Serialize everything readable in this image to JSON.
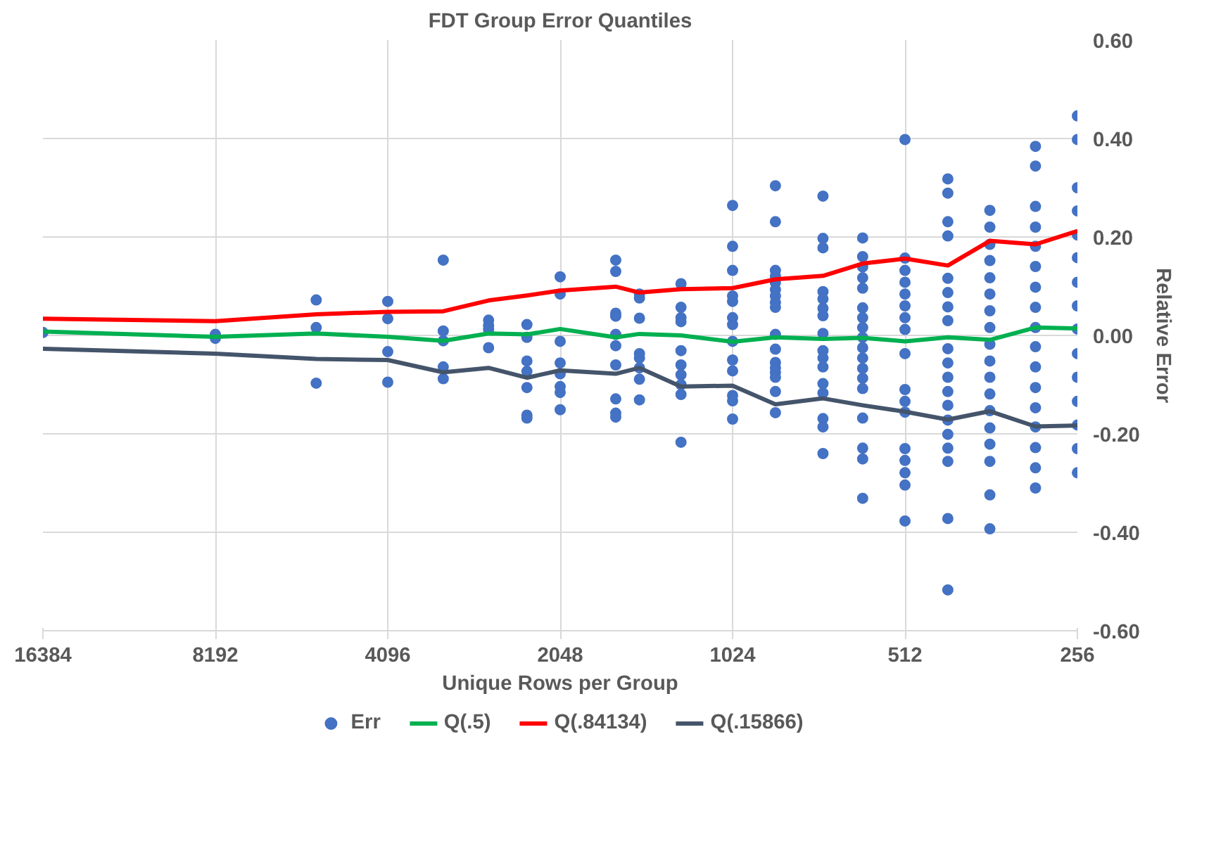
{
  "chart_data": {
    "type": "scatter",
    "title": "FDT Group Error Quantiles",
    "xlabel": "Unique Rows per Group",
    "ylabel": "Relative Error",
    "log": "x",
    "grid": true,
    "legend": "bottom",
    "xlim": [
      16384,
      256
    ],
    "xticks": [
      16384,
      8192,
      4096,
      2048,
      1024,
      512,
      256
    ],
    "ylim": [
      -0.6,
      0.6
    ],
    "yticks": [
      {
        "value": -0.6,
        "label": "-0.60"
      },
      {
        "value": -0.4,
        "label": "-0.40"
      },
      {
        "value": -0.2,
        "label": "-0.20"
      },
      {
        "value": 0,
        "label": "0.00"
      },
      {
        "value": 0.2,
        "label": "0.20"
      },
      {
        "value": 0.4,
        "label": "0.40"
      },
      {
        "value": 0.6,
        "label": "0.60"
      }
    ],
    "x": [
      16384,
      8192,
      5461,
      4096,
      3277,
      2731,
      2341,
      2048,
      1638,
      1489,
      1260,
      1024,
      862,
      712,
      607,
      512,
      431,
      364,
      303,
      256
    ],
    "series": [
      {
        "name": "Err",
        "marker": "circle",
        "color": "#4472c4",
        "x": [
          16384,
          8192,
          8192,
          5461,
          5461,
          5461,
          4096,
          4096,
          4096,
          4096,
          3277,
          3277,
          3277,
          3277,
          3277,
          2731,
          2731,
          2731,
          2731,
          2341,
          2341,
          2341,
          2341,
          2341,
          2341,
          2341,
          2048,
          2048,
          2048,
          2048,
          2048,
          2048,
          2048,
          2048,
          1638,
          1638,
          1638,
          1638,
          1638,
          1638,
          1638,
          1638,
          1638,
          1638,
          1489,
          1489,
          1489,
          1489,
          1489,
          1489,
          1489,
          1489,
          1260,
          1260,
          1260,
          1260,
          1260,
          1260,
          1260,
          1260,
          1260,
          1260,
          1024,
          1024,
          1024,
          1024,
          1024,
          1024,
          1024,
          1024,
          1024,
          1024,
          1024,
          1024,
          1024,
          862,
          862,
          862,
          862,
          862,
          862,
          862,
          862,
          862,
          862,
          862,
          862,
          862,
          862,
          862,
          862,
          862,
          712,
          712,
          712,
          712,
          712,
          712,
          712,
          712,
          712,
          712,
          712,
          712,
          712,
          712,
          712,
          712,
          607,
          607,
          607,
          607,
          607,
          607,
          607,
          607,
          607,
          607,
          607,
          607,
          607,
          607,
          607,
          607,
          607,
          607,
          512,
          512,
          512,
          512,
          512,
          512,
          512,
          512,
          512,
          512,
          512,
          512,
          512,
          512,
          512,
          512,
          512,
          431,
          431,
          431,
          431,
          431,
          431,
          431,
          431,
          431,
          431,
          431,
          431,
          431,
          431,
          431,
          431,
          431,
          431,
          431,
          364,
          364,
          364,
          364,
          364,
          364,
          364,
          364,
          364,
          364,
          364,
          364,
          364,
          364,
          364,
          364,
          364,
          364,
          303,
          303,
          303,
          303,
          303,
          303,
          303,
          303,
          303,
          303,
          303,
          303,
          303,
          303,
          303,
          303,
          303,
          256,
          256,
          256,
          256,
          256,
          256,
          256,
          256,
          256,
          256,
          256,
          256,
          256,
          256,
          256
        ],
        "values": [
          0.006,
          0.002,
          -0.006,
          0.072,
          0.016,
          -0.097,
          0.069,
          0.034,
          -0.033,
          -0.095,
          0.153,
          0.009,
          -0.011,
          -0.064,
          -0.088,
          0.031,
          0.02,
          0.012,
          -0.025,
          0.022,
          -0.004,
          -0.052,
          -0.073,
          -0.106,
          -0.162,
          -0.168,
          0.119,
          0.084,
          -0.012,
          -0.056,
          -0.078,
          -0.104,
          -0.116,
          -0.151,
          0.153,
          0.13,
          0.045,
          0.039,
          0.002,
          -0.021,
          -0.06,
          -0.129,
          -0.158,
          -0.166,
          0.084,
          0.076,
          0.035,
          -0.037,
          -0.046,
          -0.066,
          -0.089,
          -0.131,
          0.105,
          0.057,
          0.036,
          0.028,
          -0.031,
          -0.06,
          -0.08,
          -0.1,
          -0.12,
          -0.217,
          0.264,
          0.181,
          0.132,
          0.08,
          0.069,
          0.036,
          0.022,
          -0.012,
          -0.05,
          -0.072,
          -0.122,
          -0.133,
          -0.17,
          0.304,
          0.231,
          0.132,
          0.12,
          0.107,
          0.093,
          0.08,
          0.067,
          0.057,
          0.002,
          -0.028,
          -0.055,
          -0.066,
          -0.075,
          -0.085,
          -0.114,
          -0.157,
          0.283,
          0.197,
          0.178,
          0.089,
          0.074,
          0.055,
          0.04,
          0.004,
          -0.031,
          -0.046,
          -0.064,
          -0.098,
          -0.117,
          -0.169,
          -0.186,
          -0.24,
          0.198,
          0.16,
          0.139,
          0.117,
          0.096,
          0.056,
          0.036,
          0.016,
          -0.004,
          -0.025,
          -0.046,
          -0.067,
          -0.087,
          -0.108,
          -0.168,
          -0.229,
          -0.251,
          -0.331,
          0.398,
          0.157,
          0.132,
          0.108,
          0.084,
          0.06,
          0.036,
          0.012,
          -0.037,
          -0.11,
          -0.134,
          -0.156,
          -0.23,
          -0.254,
          -0.279,
          -0.304,
          -0.377,
          0.318,
          0.289,
          0.231,
          0.202,
          0.116,
          0.087,
          0.058,
          0.03,
          -0.027,
          -0.056,
          -0.085,
          -0.114,
          -0.142,
          -0.172,
          -0.201,
          -0.229,
          -0.256,
          -0.372,
          -0.517,
          0.254,
          0.22,
          0.185,
          0.152,
          0.117,
          0.084,
          0.05,
          0.016,
          -0.018,
          -0.052,
          -0.085,
          -0.119,
          -0.153,
          -0.188,
          -0.221,
          -0.256,
          -0.324,
          -0.393,
          0.384,
          0.344,
          0.262,
          0.22,
          0.181,
          0.14,
          0.098,
          0.057,
          0.016,
          -0.023,
          -0.064,
          -0.106,
          -0.147,
          -0.186,
          -0.228,
          -0.269,
          -0.31,
          0.446,
          0.398,
          0.3,
          0.253,
          0.204,
          0.158,
          0.108,
          0.06,
          0.013,
          -0.037,
          -0.085,
          -0.134,
          -0.182,
          -0.23,
          -0.279
        ]
      },
      {
        "name": "Q(.5)",
        "type": "line",
        "marker": "none",
        "line_style": "solid",
        "color": "#00b050",
        "values": [
          0.008,
          -0.003,
          0.004,
          -0.003,
          -0.011,
          0.004,
          0.002,
          0.013,
          -0.004,
          0.003,
          0.0,
          -0.013,
          -0.004,
          -0.007,
          -0.005,
          -0.012,
          -0.004,
          -0.009,
          0.016,
          0.014
        ]
      },
      {
        "name": "Q(.84134)",
        "type": "line",
        "marker": "none",
        "line_style": "solid",
        "color": "#ff0000",
        "values": [
          0.034,
          0.029,
          0.043,
          0.048,
          0.049,
          0.071,
          0.081,
          0.091,
          0.099,
          0.087,
          0.094,
          0.096,
          0.114,
          0.121,
          0.146,
          0.156,
          0.142,
          0.192,
          0.185,
          0.212
        ]
      },
      {
        "name": "Q(.15866)",
        "type": "line",
        "marker": "none",
        "line_style": "solid",
        "color": "#44546a",
        "values": [
          -0.027,
          -0.037,
          -0.048,
          -0.05,
          -0.075,
          -0.066,
          -0.086,
          -0.071,
          -0.078,
          -0.066,
          -0.104,
          -0.102,
          -0.14,
          -0.128,
          -0.142,
          -0.155,
          -0.171,
          -0.154,
          -0.185,
          -0.183
        ]
      }
    ]
  }
}
